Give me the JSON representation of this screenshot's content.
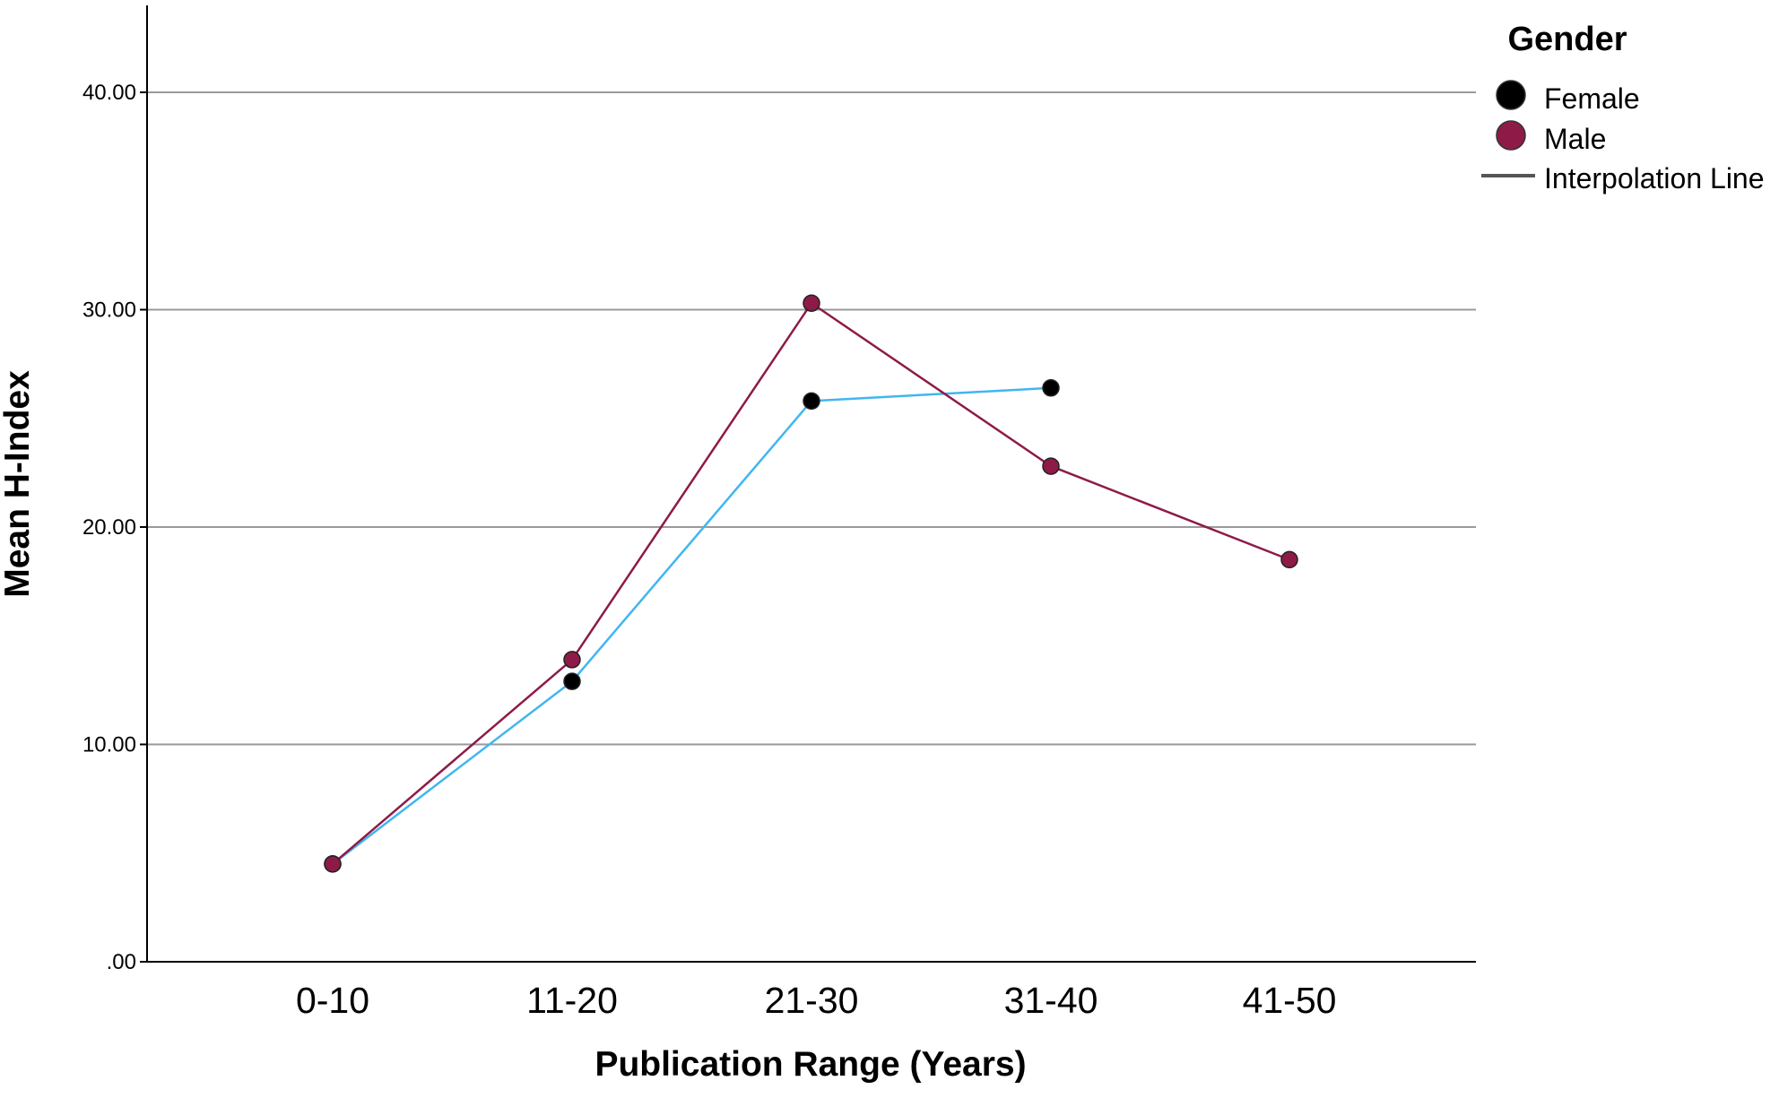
{
  "chart_data": {
    "type": "line",
    "title": "",
    "xlabel": "Publication Range (Years)",
    "ylabel": "Mean H-Index",
    "categories": [
      "0-10",
      "11-20",
      "21-30",
      "31-40",
      "41-50"
    ],
    "ylim": [
      0,
      44
    ],
    "yticks": [
      0,
      10,
      20,
      30,
      40
    ],
    "ytick_labels": [
      ".00",
      "10.00",
      "20.00",
      "30.00",
      "40.00"
    ],
    "grid": true,
    "legend": {
      "title": "Gender",
      "position": "top-right",
      "interpolation_label": "Interpolation Line"
    },
    "series": [
      {
        "name": "Female",
        "marker_color": "#000000",
        "line_color": "#41b6f0",
        "values": [
          4.5,
          12.9,
          25.8,
          26.4,
          null
        ]
      },
      {
        "name": "Male",
        "marker_color": "#8e1a48",
        "line_color": "#8e1a48",
        "values": [
          4.5,
          13.9,
          30.3,
          22.8,
          18.5
        ]
      }
    ]
  }
}
